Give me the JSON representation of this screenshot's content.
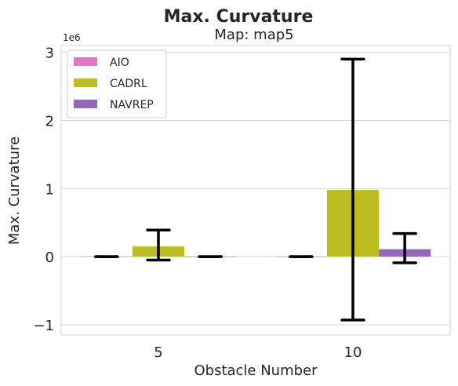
{
  "chart_data": {
    "type": "bar",
    "title": "Max. Curvature",
    "subtitle": "Map: map5",
    "xlabel": "Obstacle Number",
    "ylabel": "Max. Curvature",
    "y_offset_label": "1e6",
    "categories": [
      "5",
      "10"
    ],
    "ylim": [
      -1.15,
      3.1
    ],
    "yticks": [
      -1,
      0,
      1,
      2,
      3
    ],
    "ytick_labels": [
      "−1",
      "0",
      "1",
      "2",
      "3"
    ],
    "grid": true,
    "legend_position": "upper-left",
    "series": [
      {
        "name": "AIO",
        "color": "#e377c2",
        "values": [
          0.0,
          0.0
        ],
        "err_low": [
          0.0,
          0.0
        ],
        "err_high": [
          0.0,
          0.0
        ]
      },
      {
        "name": "CADRL",
        "color": "#bcbd22",
        "values": [
          0.15,
          0.98
        ],
        "err_low": [
          -0.05,
          -0.93
        ],
        "err_high": [
          0.39,
          2.9
        ]
      },
      {
        "name": "NAVREP",
        "color": "#9467bd",
        "values": [
          0.0,
          0.11
        ],
        "err_low": [
          0.0,
          -0.09
        ],
        "err_high": [
          0.0,
          0.34
        ]
      }
    ]
  }
}
